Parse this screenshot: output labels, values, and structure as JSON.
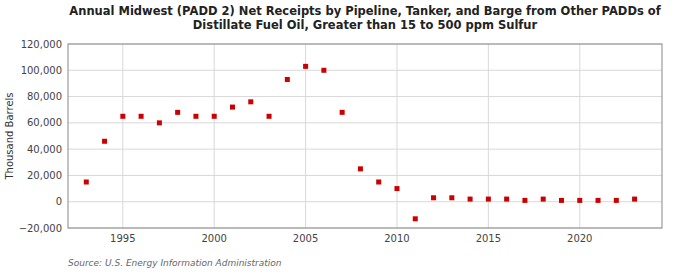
{
  "chart_data": {
    "type": "scatter",
    "title": "Annual Midwest (PADD 2) Net Receipts by Pipeline, Tanker, and Barge from Other PADDs of\nDistillate Fuel Oil, Greater than 15 to 500 ppm Sulfur",
    "y_label": "Thousand Barrels",
    "annotations": [
      "Source: U.S. Energy Information Administration"
    ],
    "x": [
      1993,
      1994,
      1995,
      1996,
      1997,
      1998,
      1999,
      2000,
      2001,
      2002,
      2003,
      2004,
      2005,
      2006,
      2007,
      2008,
      2009,
      2010,
      2011,
      2012,
      2013,
      2014,
      2015,
      2016,
      2017,
      2018,
      2019,
      2020,
      2021,
      2022,
      2023
    ],
    "values": [
      15000,
      46000,
      65000,
      65000,
      60000,
      68000,
      65000,
      65000,
      72000,
      76000,
      65000,
      93000,
      103000,
      100000,
      68000,
      25000,
      15000,
      10000,
      -13000,
      3000,
      3000,
      2000,
      2000,
      2000,
      1000,
      2000,
      1000,
      1000,
      1000,
      1000,
      2000
    ],
    "color": "#cc0000",
    "marker": "square",
    "xlim": [
      1992,
      2024.5
    ],
    "ylim": [
      -20000,
      120000
    ],
    "xticks": [
      1995,
      2000,
      2005,
      2010,
      2015,
      2020
    ],
    "yticks": [
      {
        "value": -20000,
        "label": "−20,000"
      },
      0,
      {
        "value": 20000,
        "label": "20,000"
      },
      {
        "value": 40000,
        "label": "40,000"
      },
      {
        "value": 60000,
        "label": "60,000"
      },
      {
        "value": 80000,
        "label": "80,000"
      },
      {
        "value": 100000,
        "label": "100,000"
      },
      {
        "value": 120000,
        "label": "120,000"
      }
    ],
    "grid": true
  }
}
